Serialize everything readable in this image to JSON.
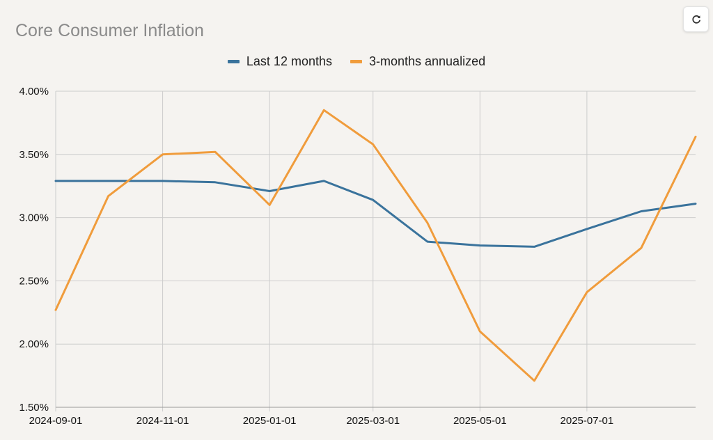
{
  "title": "Core Consumer Inflation",
  "refresh_icon": "refresh-icon",
  "colors": {
    "series1": "#3a739c",
    "series2": "#f09c3c",
    "grid": "#cccccc",
    "background": "#f5f3f0"
  },
  "legend": [
    {
      "name": "Last 12 months",
      "color": "#3a739c"
    },
    {
      "name": "3-months annualized",
      "color": "#f09c3c"
    }
  ],
  "chart_data": {
    "type": "line",
    "title": "Core Consumer Inflation",
    "xlabel": "",
    "ylabel": "",
    "x": [
      "2024-09-01",
      "2024-10-01",
      "2024-11-01",
      "2024-12-01",
      "2025-01-01",
      "2025-02-01",
      "2025-03-01",
      "2025-04-01",
      "2025-05-01",
      "2025-06-01",
      "2025-07-01",
      "2025-08-01",
      "2025-09-01"
    ],
    "x_tick_labels": [
      "2024-09-01",
      "2024-11-01",
      "2025-01-01",
      "2025-03-01",
      "2025-05-01",
      "2025-07-01"
    ],
    "y_tick_labels": [
      "1.50%",
      "2.00%",
      "2.50%",
      "3.00%",
      "3.50%",
      "4.00%"
    ],
    "y_ticks": [
      1.5,
      2.0,
      2.5,
      3.0,
      3.5,
      4.0
    ],
    "ylim": [
      1.5,
      4.0
    ],
    "grid": true,
    "legend_position": "top-center",
    "series": [
      {
        "name": "Last 12 months",
        "color": "#3a739c",
        "values": [
          3.29,
          3.29,
          3.29,
          3.28,
          3.21,
          3.29,
          3.14,
          2.81,
          2.78,
          2.77,
          2.91,
          3.05,
          3.11
        ]
      },
      {
        "name": "3-months annualized",
        "color": "#f09c3c",
        "values": [
          2.27,
          3.17,
          3.5,
          3.52,
          3.1,
          3.85,
          3.58,
          2.96,
          2.1,
          1.71,
          2.41,
          2.76,
          3.64
        ]
      }
    ]
  }
}
